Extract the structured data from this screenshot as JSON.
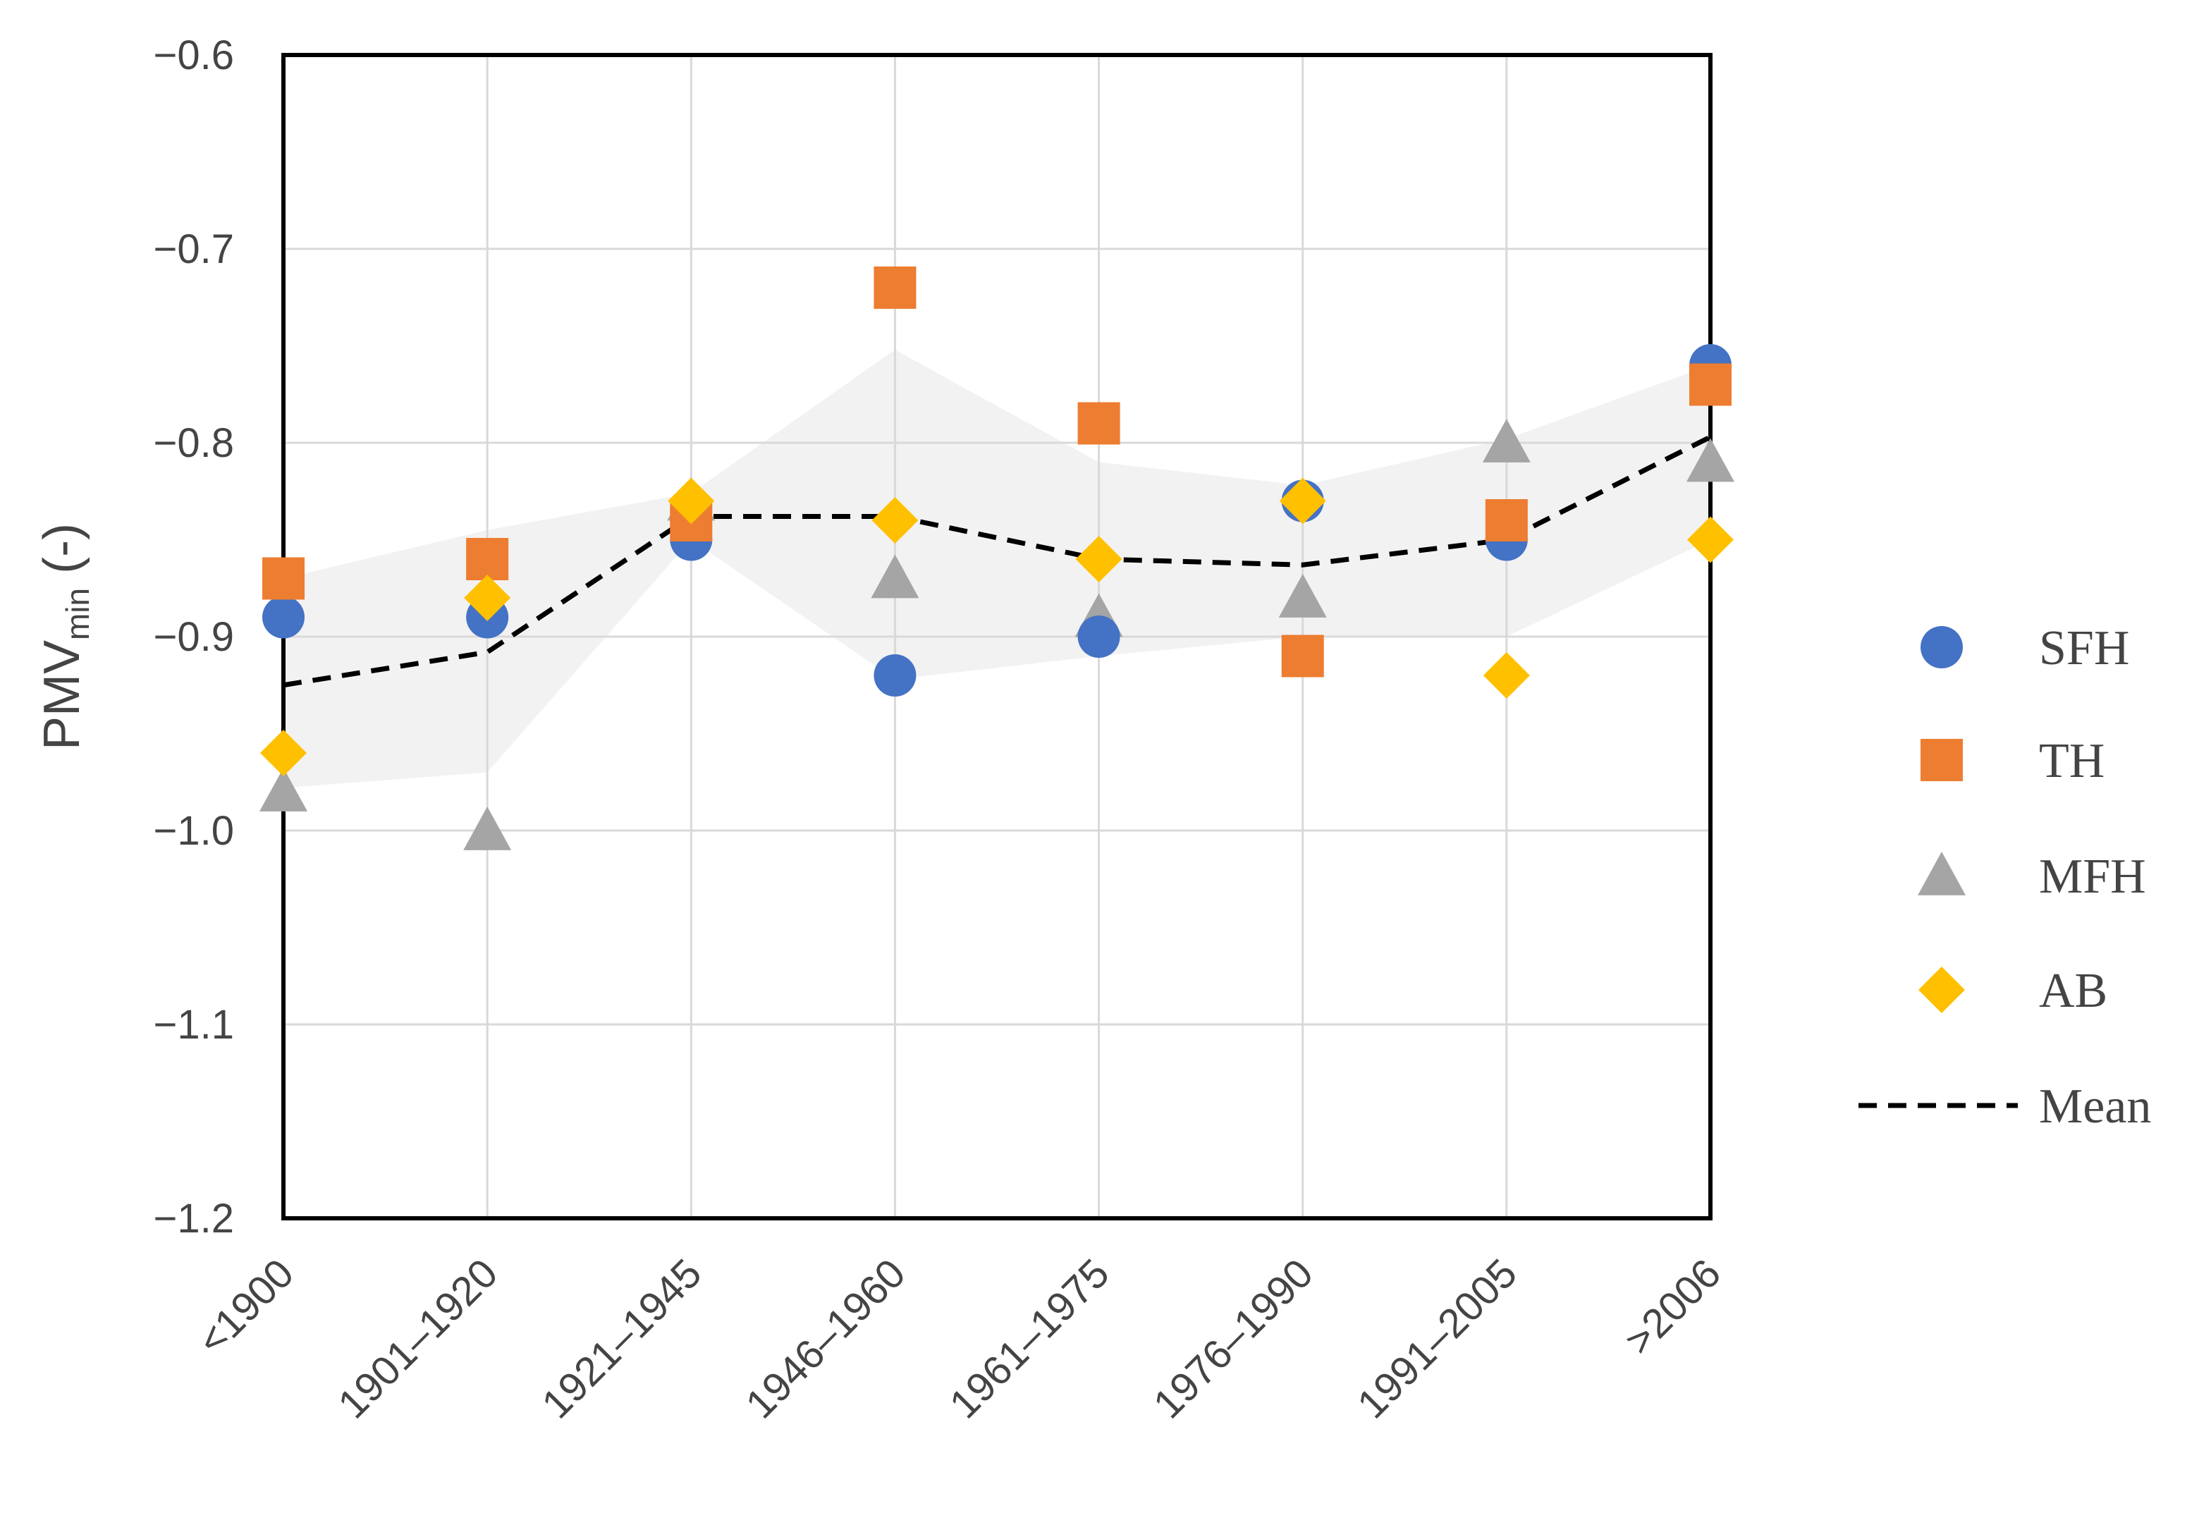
{
  "chart_data": {
    "type": "scatter",
    "title": "",
    "xlabel": "",
    "ylabel": "PMV",
    "ylabel_sub": "min",
    "ylabel_suffix": " (-)",
    "categories": [
      "<1900",
      "1901–1920",
      "1921–1945",
      "1946–1960",
      "1961–1975",
      "1976–1990",
      "1991–2005",
      ">2006"
    ],
    "ylim": [
      -1.2,
      -0.6
    ],
    "yticks": [
      -0.6,
      -0.7,
      -0.8,
      -0.9,
      -1.0,
      -1.1,
      -1.2
    ],
    "ytick_labels": [
      "−0.6",
      "−0.7",
      "−0.8",
      "−0.9",
      "−1.0",
      "−1.1",
      "−1.2"
    ],
    "grid": true,
    "legend_position": "right",
    "series": [
      {
        "name": "SFH",
        "marker": "circle",
        "color": "#4472C4",
        "values": [
          -0.89,
          -0.89,
          -0.85,
          -0.92,
          -0.9,
          -0.83,
          -0.85,
          -0.76
        ]
      },
      {
        "name": "TH",
        "marker": "square",
        "color": "#ED7D31",
        "values": [
          -0.87,
          -0.86,
          -0.84,
          -0.72,
          -0.79,
          -0.91,
          -0.84,
          -0.77
        ]
      },
      {
        "name": "MFH",
        "marker": "triangle",
        "color": "#A5A5A5",
        "values": [
          -0.98,
          -1.0,
          -0.83,
          -0.87,
          -0.89,
          -0.88,
          -0.8,
          -0.81
        ]
      },
      {
        "name": "AB",
        "marker": "diamond",
        "color": "#FFC000",
        "values": [
          -0.96,
          -0.88,
          -0.83,
          -0.84,
          -0.86,
          -0.83,
          -0.92,
          -0.85
        ]
      }
    ],
    "mean": {
      "name": "Mean",
      "style": "dashed",
      "color": "#000000",
      "values": [
        -0.925,
        -0.908,
        -0.838,
        -0.838,
        -0.86,
        -0.863,
        -0.85,
        -0.797
      ]
    },
    "range_band": {
      "color": "#F2F2F2",
      "upper": [
        -0.87,
        -0.845,
        -0.826,
        -0.752,
        -0.81,
        -0.822,
        -0.798,
        -0.76
      ],
      "lower": [
        -0.978,
        -0.97,
        -0.85,
        -0.922,
        -0.91,
        -0.9,
        -0.9,
        -0.85
      ]
    }
  }
}
